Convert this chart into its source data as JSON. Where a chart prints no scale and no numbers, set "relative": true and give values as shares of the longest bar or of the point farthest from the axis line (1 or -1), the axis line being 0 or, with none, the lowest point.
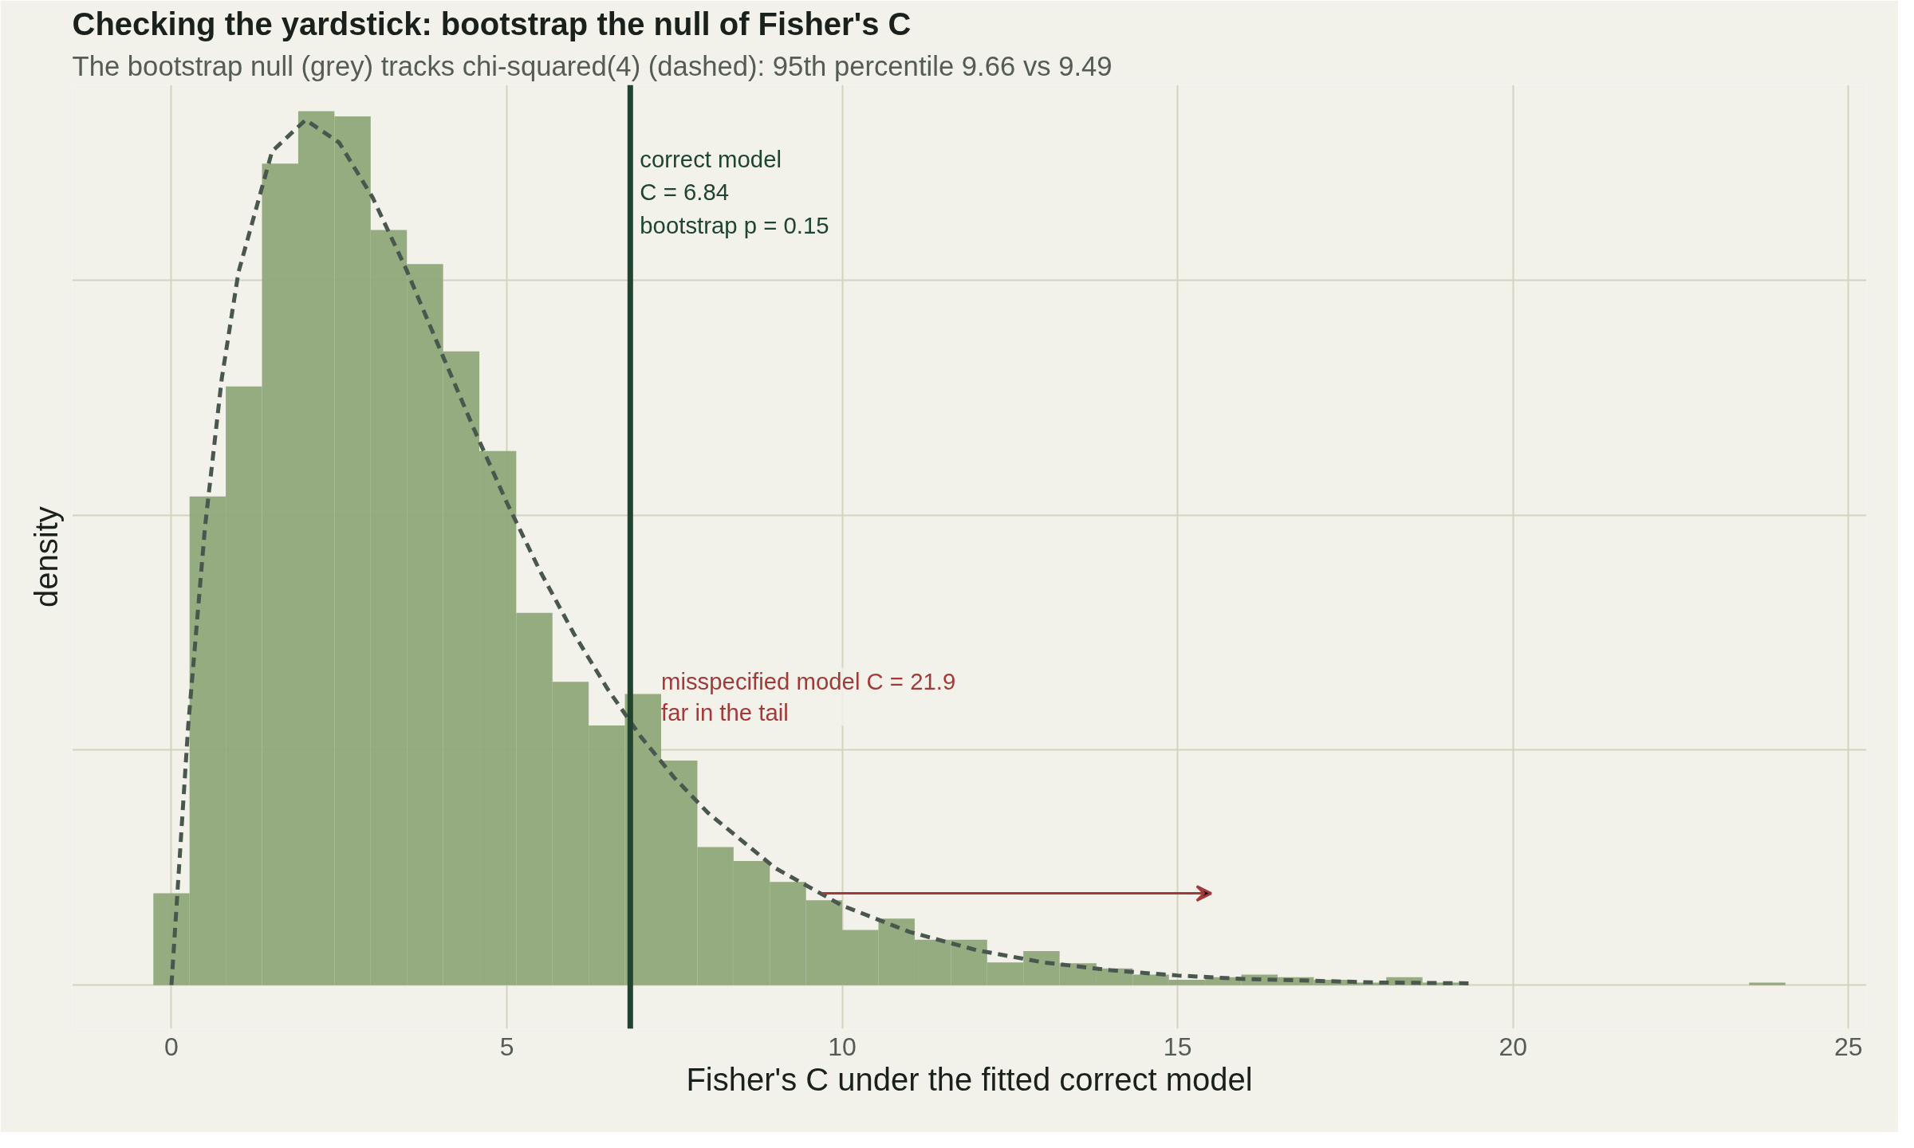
{
  "chart_data": {
    "type": "histogram",
    "title": "Checking the yardstick: bootstrap the null of Fisher's C",
    "subtitle": "The bootstrap null (grey) tracks chi-squared(4) (dashed): 95th percentile 9.66 vs 9.49",
    "xlabel": "Fisher's C under the fitted correct model",
    "ylabel": "density",
    "relative": true,
    "bins": [
      -0.27,
      0.27,
      0.81,
      1.35,
      1.89,
      2.43,
      2.97,
      3.51,
      4.05,
      4.59,
      5.14,
      5.68,
      6.22,
      6.76,
      7.3,
      7.84,
      8.38,
      8.92,
      9.46,
      10.0,
      10.54,
      11.08,
      11.62,
      12.16,
      12.7,
      13.24,
      13.79,
      14.33,
      14.87,
      15.41,
      15.95,
      16.49,
      17.03,
      17.57,
      18.11,
      18.65,
      19.19,
      23.52,
      24.06
    ],
    "values": [
      0.105,
      0.559,
      0.685,
      0.94,
      1,
      0.994,
      0.864,
      0.825,
      0.725,
      0.611,
      0.426,
      0.347,
      0.297,
      0.333,
      0.257,
      0.158,
      0.142,
      0.118,
      0.097,
      0.063,
      0.076,
      0.052,
      0.052,
      0.026,
      0.039,
      0.025,
      0.019,
      0.012,
      0.006,
      0.009,
      0.012,
      0.009,
      0.006,
      0.003,
      0.009,
      0.003,
      0,
      0.003
    ],
    "color": "#8fa67a",
    "series": [
      {
        "type": "line",
        "color": "#4a574f",
        "line_style": "dashed",
        "x": [
          0,
          0.25,
          0.5,
          0.75,
          1,
          1.5,
          2,
          2.5,
          3,
          3.5,
          4,
          4.5,
          5,
          5.5,
          6,
          6.5,
          7,
          7.5,
          8,
          9,
          10,
          11,
          12,
          13,
          14,
          15,
          16,
          17,
          18,
          19.4
        ],
        "values": [
          0,
          0.297,
          0.524,
          0.694,
          0.816,
          0.954,
          0.99,
          0.964,
          0.901,
          0.819,
          0.728,
          0.638,
          0.552,
          0.473,
          0.402,
          0.339,
          0.284,
          0.237,
          0.197,
          0.134,
          0.091,
          0.061,
          0.04,
          0.026,
          0.017,
          0.011,
          0.007,
          0.005,
          0.003,
          0.002
        ]
      }
    ],
    "ref_lines": [
      {
        "axis": "x",
        "value": 6.84,
        "label": "correct model\nC = 6.84\nbootstrap p = 0.15",
        "color": "#1f4530"
      }
    ],
    "annotations": [
      "misspecified model C = 21.9\nfar in the tail"
    ],
    "xlim": [
      -1.48,
      25.27
    ],
    "xticks": [
      0,
      5,
      10,
      15,
      20,
      25
    ],
    "grid": true,
    "tick_labels": "x"
  }
}
